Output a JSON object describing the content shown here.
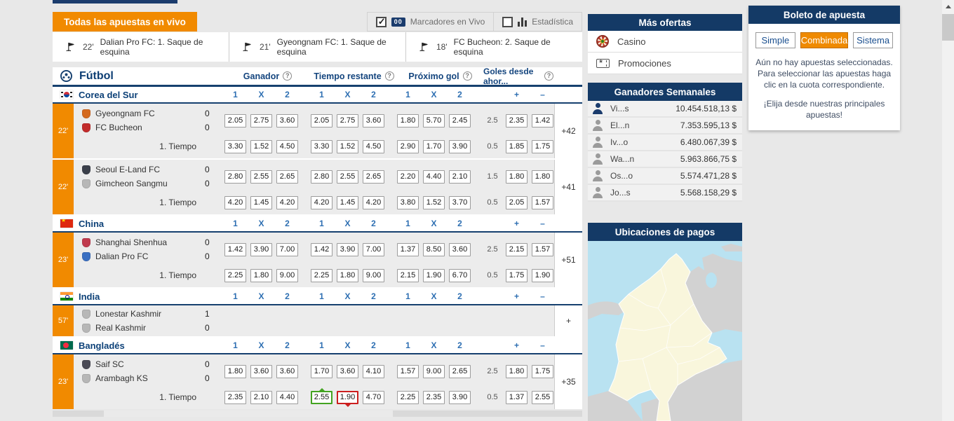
{
  "top": {
    "banner": "Todas las apuestas en vivo",
    "toggles": [
      {
        "label": "Marcadores en Vivo",
        "checked": true
      },
      {
        "label": "Estadística",
        "checked": false
      }
    ]
  },
  "ticker": [
    {
      "time": "22'",
      "event": "Dalian Pro FC: 1. Saque de esquina"
    },
    {
      "time": "21'",
      "event": "Gyeongnam FC: 1. Saque de esquina"
    },
    {
      "time": "18'",
      "event": "FC Bucheon: 2. Saque de esquina"
    }
  ],
  "oddsTable": {
    "sport": "Fútbol",
    "groups": [
      "Ganador",
      "Tiempo restante",
      "Próximo gol",
      "Goles desde ahor..."
    ],
    "subcols": [
      "1",
      "X",
      "2"
    ],
    "overUnder": [
      "+",
      "–"
    ],
    "sections": [
      {
        "name": "Corea del Sur",
        "flag": "kr",
        "matches": [
          {
            "time": "22'",
            "teams": [
              {
                "name": "Gyeongnam FC",
                "score": "0",
                "crest": "#d4691f"
              },
              {
                "name": "FC Bucheon",
                "score": "0",
                "crest": "#c22b2b"
              }
            ],
            "main": {
              "g1": [
                "2.05",
                "2.75",
                "3.60"
              ],
              "g2": [
                "2.05",
                "2.75",
                "3.60"
              ],
              "g3": [
                "1.80",
                "5.70",
                "2.45"
              ],
              "line": "2.5",
              "ou": [
                "2.35",
                "1.42"
              ]
            },
            "ht": {
              "label": "1. Tiempo",
              "g1": [
                "3.30",
                "1.52",
                "4.50"
              ],
              "g2": [
                "3.30",
                "1.52",
                "4.50"
              ],
              "g3": [
                "2.90",
                "1.70",
                "3.90"
              ],
              "line": "0.5",
              "ou": [
                "1.85",
                "1.75"
              ]
            },
            "total": "+42"
          },
          {
            "time": "22'",
            "teams": [
              {
                "name": "Seoul E-Land FC",
                "score": "0",
                "crest": "#3a3f4a"
              },
              {
                "name": "Gimcheon Sangmu",
                "score": "0",
                "crest": "#b7b7b7"
              }
            ],
            "main": {
              "g1": [
                "2.80",
                "2.55",
                "2.65"
              ],
              "g2": [
                "2.80",
                "2.55",
                "2.65"
              ],
              "g3": [
                "2.20",
                "4.40",
                "2.10"
              ],
              "line": "1.5",
              "ou": [
                "1.80",
                "1.80"
              ]
            },
            "ht": {
              "label": "1. Tiempo",
              "g1": [
                "4.20",
                "1.45",
                "4.20"
              ],
              "g2": [
                "4.20",
                "1.45",
                "4.20"
              ],
              "g3": [
                "3.80",
                "1.52",
                "3.70"
              ],
              "line": "0.5",
              "ou": [
                "2.05",
                "1.57"
              ]
            },
            "total": "+41"
          }
        ]
      },
      {
        "name": "China",
        "flag": "cn",
        "matches": [
          {
            "time": "23'",
            "teams": [
              {
                "name": "Shanghai Shenhua",
                "score": "0",
                "crest": "#c03a4e"
              },
              {
                "name": "Dalian Pro FC",
                "score": "0",
                "crest": "#3a6fc2"
              }
            ],
            "main": {
              "g1": [
                "1.42",
                "3.90",
                "7.00"
              ],
              "g2": [
                "1.42",
                "3.90",
                "7.00"
              ],
              "g3": [
                "1.37",
                "8.50",
                "3.60"
              ],
              "line": "2.5",
              "ou": [
                "2.15",
                "1.57"
              ]
            },
            "ht": {
              "label": "1. Tiempo",
              "g1": [
                "2.25",
                "1.80",
                "9.00"
              ],
              "g2": [
                "2.25",
                "1.80",
                "9.00"
              ],
              "g3": [
                "2.15",
                "1.90",
                "6.70"
              ],
              "line": "0.5",
              "ou": [
                "1.75",
                "1.90"
              ]
            },
            "total": "+51"
          }
        ]
      },
      {
        "name": "India",
        "flag": "in",
        "matches": [
          {
            "time": "57'",
            "teams": [
              {
                "name": "Lonestar Kashmir",
                "score": "1",
                "crest": "#b7b7b7"
              },
              {
                "name": "Real Kashmir",
                "score": "0",
                "crest": "#b7b7b7"
              }
            ],
            "main": null,
            "ht": null,
            "total": "+"
          }
        ]
      },
      {
        "name": "Bangladés",
        "flag": "bd",
        "matches": [
          {
            "time": "23'",
            "teams": [
              {
                "name": "Saif SC",
                "score": "0",
                "crest": "#4a4a55"
              },
              {
                "name": "Arambagh KS",
                "score": "0",
                "crest": "#b7b7b7"
              }
            ],
            "main": {
              "g1": [
                "1.80",
                "3.60",
                "3.60"
              ],
              "g2": [
                "1.70",
                "3.60",
                "4.10"
              ],
              "g3": [
                "1.57",
                "9.00",
                "2.65"
              ],
              "line": "2.5",
              "ou": [
                "1.80",
                "1.75"
              ]
            },
            "ht": {
              "label": "1. Tiempo",
              "g1": [
                "2.35",
                "2.10",
                "4.40"
              ],
              "g2": [
                {
                  "v": "2.55",
                  "trend": "up"
                },
                {
                  "v": "1.90",
                  "trend": "down"
                },
                "4.70"
              ],
              "g3": [
                "2.25",
                "2.35",
                "3.90"
              ],
              "line": "0.5",
              "ou": [
                "1.37",
                "2.55"
              ]
            },
            "total": "+35"
          }
        ]
      }
    ]
  },
  "sidebar": {
    "offers": {
      "title": "Más ofertas",
      "items": [
        {
          "label": "Casino",
          "icon": "roulette-icon"
        },
        {
          "label": "Promociones",
          "icon": "ticket-icon"
        }
      ]
    },
    "winners": {
      "title": "Ganadores Semanales",
      "items": [
        {
          "name": "Vi...s",
          "amount": "10.454.518,13 $",
          "highlight": true
        },
        {
          "name": "El...n",
          "amount": "7.353.595,13 $",
          "highlight": false
        },
        {
          "name": "Iv...o",
          "amount": "6.480.067,39 $",
          "highlight": false
        },
        {
          "name": "Wa...n",
          "amount": "5.963.866,75 $",
          "highlight": false
        },
        {
          "name": "Os...o",
          "amount": "5.574.471,28 $",
          "highlight": false
        },
        {
          "name": "Jo...s",
          "amount": "5.568.158,29 $",
          "highlight": false
        }
      ]
    },
    "payments": {
      "title": "Ubicaciones de pagos",
      "map": "colombia"
    }
  },
  "betslip": {
    "title": "Boleto de apuesta",
    "tabs": [
      {
        "label": "Simple",
        "active": false
      },
      {
        "label": "Combinada",
        "active": true
      },
      {
        "label": "Sistema",
        "active": false
      }
    ],
    "empty_message": "Aún no hay apuestas seleccionadas. Para seleccionar las apuestas haga clic en la cuota correspondiente.",
    "cta_message": "¡Elija desde nuestras principales apuestas!"
  },
  "colors": {
    "accent_orange": "#f18a00",
    "navy": "#16406f",
    "link_blue": "#2e6fb2",
    "odd_up_green": "#43a321",
    "odd_down_red": "#cc1f1f"
  }
}
